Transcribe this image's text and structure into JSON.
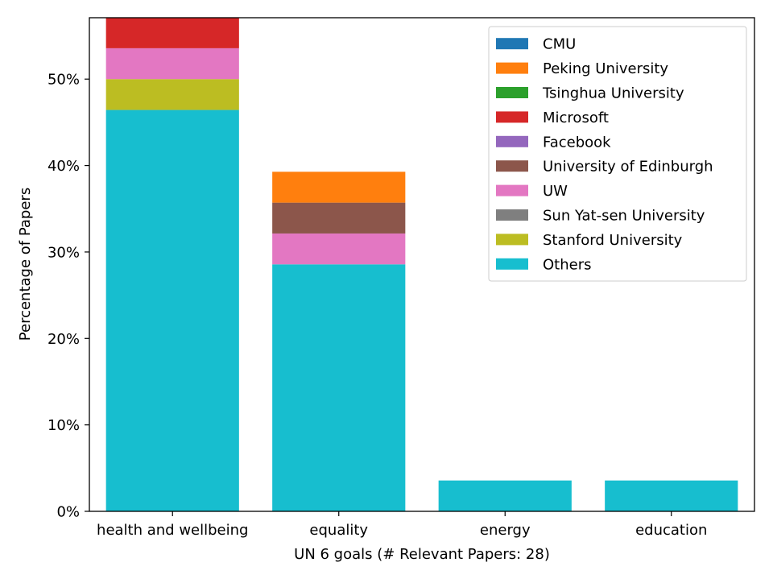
{
  "chart_data": {
    "type": "bar",
    "stacked": true,
    "xlabel": "UN 6 goals (# Relevant Papers: 28)",
    "ylabel": "Percentage of Papers",
    "ylim": [
      0,
      57.1
    ],
    "yticks": [
      0,
      10,
      20,
      30,
      40,
      50
    ],
    "ytick_labels": [
      "0%",
      "10%",
      "20%",
      "30%",
      "40%",
      "50%"
    ],
    "categories": [
      "health and wellbeing",
      "equality",
      "energy",
      "education"
    ],
    "legend_position": "top-right",
    "grid": false,
    "series": [
      {
        "name": "CMU",
        "color": "#1f77b4",
        "values": [
          0,
          0,
          0,
          0
        ]
      },
      {
        "name": "Peking University",
        "color": "#ff7f0e",
        "values": [
          0,
          3.57,
          0,
          0
        ]
      },
      {
        "name": "Tsinghua University",
        "color": "#2ca02c",
        "values": [
          0,
          0,
          0,
          0
        ]
      },
      {
        "name": "Microsoft",
        "color": "#d62728",
        "values": [
          3.57,
          0,
          0,
          0
        ]
      },
      {
        "name": "Facebook",
        "color": "#9467bd",
        "values": [
          0,
          0,
          0,
          0
        ]
      },
      {
        "name": "University of Edinburgh",
        "color": "#8c564b",
        "values": [
          0,
          3.57,
          0,
          0
        ]
      },
      {
        "name": "UW",
        "color": "#e377c2",
        "values": [
          3.57,
          3.57,
          0,
          0
        ]
      },
      {
        "name": "Sun Yat-sen University",
        "color": "#7f7f7f",
        "values": [
          0,
          0,
          0,
          0
        ]
      },
      {
        "name": "Stanford University",
        "color": "#bcbd22",
        "values": [
          3.57,
          0,
          0,
          0
        ]
      },
      {
        "name": "Others",
        "color": "#17becf",
        "values": [
          46.43,
          28.57,
          3.57,
          3.57
        ]
      }
    ]
  }
}
